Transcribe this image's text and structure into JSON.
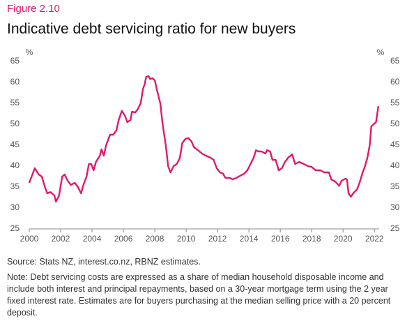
{
  "chart_data": {
    "type": "line",
    "figure_label": "Figure 2.10",
    "title": "Indicative debt servicing ratio for new buyers",
    "y_label": "%",
    "y2_label": "%",
    "source": "Source: Stats NZ, interest.co.nz, RBNZ estimates.",
    "note": "Note: Debt servicing costs are expressed as a share of median household disposable income and include both interest and principal repayments, based on a 30-year mortgage term using the 2 year fixed interest rate. Estimates are for buyers purchasing at the median selling price with a 20 percent deposit.",
    "x": [
      2000,
      2000.35,
      2000.6,
      2000.8,
      2001.0,
      2001.15,
      2001.35,
      2001.6,
      2001.7,
      2001.9,
      2002.1,
      2002.25,
      2002.45,
      2002.65,
      2002.9,
      2003.1,
      2003.3,
      2003.45,
      2003.65,
      2003.8,
      2003.95,
      2004.1,
      2004.25,
      2004.5,
      2004.6,
      2004.75,
      2004.9,
      2005.15,
      2005.35,
      2005.55,
      2005.7,
      2005.9,
      2006.1,
      2006.25,
      2006.45,
      2006.55,
      2006.75,
      2006.9,
      2007.1,
      2007.25,
      2007.35,
      2007.45,
      2007.6,
      2007.7,
      2007.85,
      2008.0,
      2008.15,
      2008.35,
      2008.5,
      2008.7,
      2008.85,
      2009.0,
      2009.2,
      2009.4,
      2009.6,
      2009.75,
      2009.95,
      2010.15,
      2010.35,
      2010.5,
      2010.75,
      2011.0,
      2011.25,
      2011.55,
      2011.75,
      2011.95,
      2012.15,
      2012.35,
      2012.5,
      2012.8,
      2012.95,
      2013.2,
      2013.5,
      2013.7,
      2013.9,
      2014.1,
      2014.3,
      2014.45,
      2014.6,
      2014.8,
      2015.05,
      2015.15,
      2015.35,
      2015.5,
      2015.7,
      2015.9,
      2016.1,
      2016.3,
      2016.5,
      2016.75,
      2016.95,
      2017.2,
      2017.5,
      2017.75,
      2018.0,
      2018.25,
      2018.55,
      2018.8,
      2019.1,
      2019.25,
      2019.5,
      2019.75,
      2019.9,
      2020.15,
      2020.25,
      2020.35,
      2020.5,
      2020.65,
      2020.9,
      2021.05,
      2021.25,
      2021.4,
      2021.55,
      2021.7,
      2021.8,
      2021.95,
      2022.1,
      2022.25
    ],
    "series": [
      {
        "name": "Debt servicing ratio",
        "color": "#e0186c",
        "values": [
          36,
          39.5,
          38,
          37.5,
          35,
          33.5,
          33.8,
          33,
          31.5,
          33,
          37.5,
          38,
          36.5,
          35.5,
          36,
          35,
          33.5,
          35.5,
          37.5,
          40.5,
          40.5,
          39,
          41,
          42.5,
          44,
          42.5,
          45,
          47.5,
          47.5,
          48.5,
          51,
          53.2,
          52,
          50.5,
          51,
          53,
          52.8,
          53.5,
          55,
          58.5,
          59.5,
          61.3,
          61.5,
          60.8,
          61,
          60.5,
          58,
          55,
          50,
          45,
          40,
          38.5,
          40,
          40.5,
          42,
          45.5,
          46.5,
          46.7,
          45.8,
          44.5,
          43.8,
          43,
          42.5,
          42,
          41.5,
          39.5,
          38.5,
          38.2,
          37.2,
          37.2,
          36.8,
          37.2,
          37.8,
          38.2,
          39,
          40.5,
          42,
          43.8,
          43.5,
          43.5,
          43,
          43.8,
          43.5,
          41.5,
          41.5,
          39,
          39.5,
          41,
          42,
          42.8,
          40.5,
          41,
          40.5,
          40,
          39.8,
          39,
          39,
          38.5,
          38.5,
          36.8,
          36.3,
          35.3,
          36.5,
          37,
          36.8,
          33.5,
          32.7,
          33.5,
          34.5,
          36,
          38.5,
          40,
          42,
          45,
          49.5,
          50,
          50.5,
          54.3
        ]
      }
    ],
    "xlim": [
      2000,
      2022.3
    ],
    "xticks": [
      2000,
      2002,
      2004,
      2006,
      2008,
      2010,
      2012,
      2014,
      2016,
      2018,
      2020,
      2022
    ],
    "ylim": [
      25,
      65
    ],
    "yticks": [
      25,
      30,
      35,
      40,
      45,
      50,
      55,
      60,
      65
    ],
    "y2lim": [
      25,
      65
    ],
    "y2ticks": [
      25,
      30,
      35,
      40,
      45,
      50,
      55,
      60,
      65
    ],
    "grid": false
  }
}
